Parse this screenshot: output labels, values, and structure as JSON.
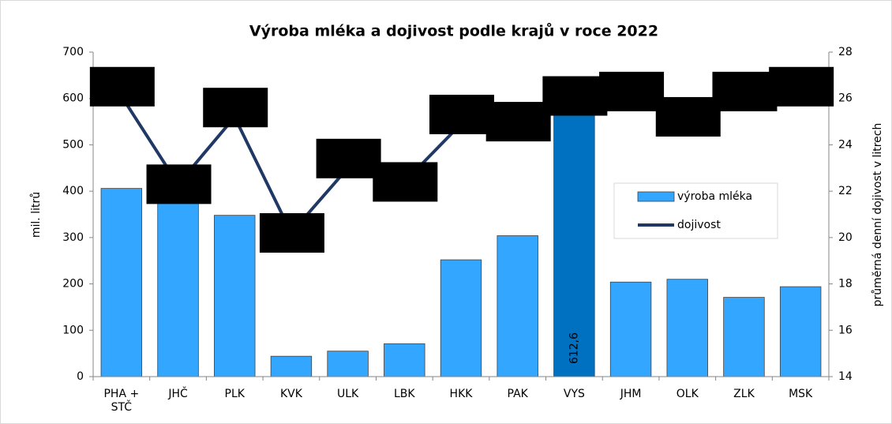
{
  "chart_data": {
    "type": "bar-line",
    "title": "Výroba mléka a dojivost podle krajů v roce 2022",
    "ylabel": "mil. litrů",
    "y2label": "průměrná denní dojivost v litrech",
    "categories": [
      "PHA + STČ",
      "JHČ",
      "PLK",
      "KVK",
      "ULK",
      "LBK",
      "HKK",
      "PAK",
      "VYS",
      "JHM",
      "OLK",
      "ZLK",
      "MSK"
    ],
    "series": [
      {
        "name": "výroba mléka",
        "type": "bar",
        "color": "#33a7ff",
        "colors": [
          "#33a7ff",
          "#33a7ff",
          "#33a7ff",
          "#33a7ff",
          "#33a7ff",
          "#33a7ff",
          "#33a7ff",
          "#33a7ff",
          "#0070c0",
          "#33a7ff",
          "#33a7ff",
          "#33a7ff",
          "#33a7ff"
        ],
        "values": [
          406,
          381,
          348,
          44,
          55,
          71,
          252,
          304,
          612.6,
          204,
          210,
          171,
          194
        ],
        "value_labels": [
          null,
          null,
          null,
          null,
          null,
          null,
          null,
          null,
          "612,6",
          null,
          null,
          null,
          null
        ]
      },
      {
        "name": "dojivost",
        "type": "line",
        "axis": "y2",
        "color": "#1f3864",
        "values": [
          26.1,
          22.3,
          25.2,
          20.2,
          23.0,
          22.4,
          24.9,
          25.0,
          25.7,
          26.3,
          24.8,
          26.3,
          26.1
        ]
      }
    ],
    "ylim": [
      0,
      700
    ],
    "yticks": [
      0,
      100,
      200,
      300,
      400,
      500,
      600,
      700
    ],
    "y2lim": [
      14,
      28
    ],
    "y2ticks": [
      14,
      16,
      18,
      20,
      22,
      24,
      26,
      28
    ],
    "legend": "center-right"
  }
}
